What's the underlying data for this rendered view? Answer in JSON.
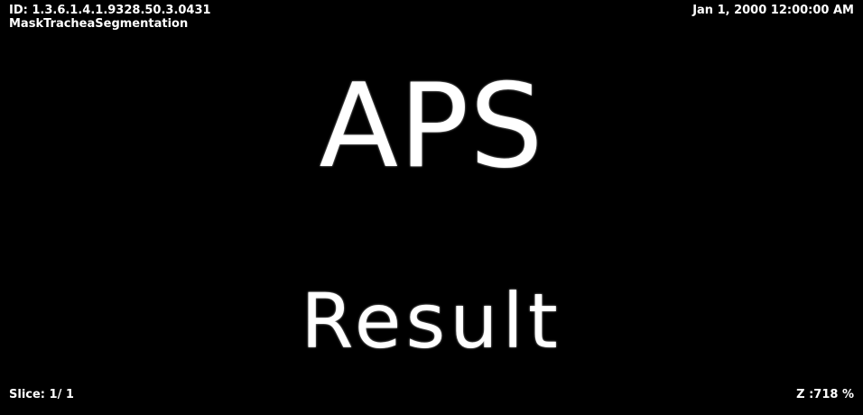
{
  "overlay": {
    "top_left": {
      "study_id": "ID: 1.3.6.1.4.1.9328.50.3.0431",
      "series_name": "MaskTracheaSegmentation"
    },
    "top_right": {
      "datetime": "Jan 1, 2000 12:00:00 AM"
    },
    "bottom_left": {
      "slice": "Slice: 1/ 1"
    },
    "bottom_right": {
      "zoom": "Z :718 %"
    }
  },
  "image": {
    "title": "APS",
    "subtitle": "Result"
  },
  "colors": {
    "background": "#000000",
    "text": "#ffffff"
  }
}
